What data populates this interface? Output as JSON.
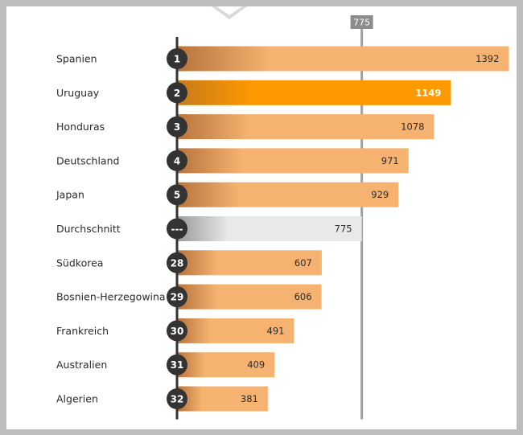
{
  "chart_data": {
    "type": "bar",
    "orientation": "horizontal",
    "average_marker": {
      "label": "775",
      "value": 775
    },
    "highlight": "Uruguay",
    "bars": [
      {
        "rank": "1",
        "name": "Spanien",
        "value": 1392,
        "label": "1392",
        "kind": "normal"
      },
      {
        "rank": "2",
        "name": "Uruguay",
        "value": 1149,
        "label": "1149",
        "kind": "highlight"
      },
      {
        "rank": "3",
        "name": "Honduras",
        "value": 1078,
        "label": "1078",
        "kind": "normal"
      },
      {
        "rank": "4",
        "name": "Deutschland",
        "value": 971,
        "label": "971",
        "kind": "normal"
      },
      {
        "rank": "5",
        "name": "Japan",
        "value": 929,
        "label": "929",
        "kind": "normal"
      },
      {
        "rank": "---",
        "name": "Durchschnitt",
        "value": 775,
        "label": "775",
        "kind": "average"
      },
      {
        "rank": "28",
        "name": "Südkorea",
        "value": 607,
        "label": "607",
        "kind": "normal"
      },
      {
        "rank": "29",
        "name": "Bosnien-Herzegowina",
        "value": 606,
        "label": "606",
        "kind": "normal"
      },
      {
        "rank": "30",
        "name": "Frankreich",
        "value": 491,
        "label": "491",
        "kind": "normal"
      },
      {
        "rank": "31",
        "name": "Australien",
        "value": 409,
        "label": "409",
        "kind": "normal"
      },
      {
        "rank": "32",
        "name": "Algerien",
        "value": 381,
        "label": "381",
        "kind": "normal"
      }
    ],
    "colors": {
      "bar": "#f5b270",
      "bar_gradient_start": "#b8733a",
      "highlight": "#fe9900",
      "highlight_gradient_start": "#c77a1a",
      "average": "#e9e9e9",
      "average_gradient_start": "#9a9a9a",
      "axis": "#333333",
      "marker_line": "#a0a0a0",
      "rank_circle": "#333333"
    }
  }
}
